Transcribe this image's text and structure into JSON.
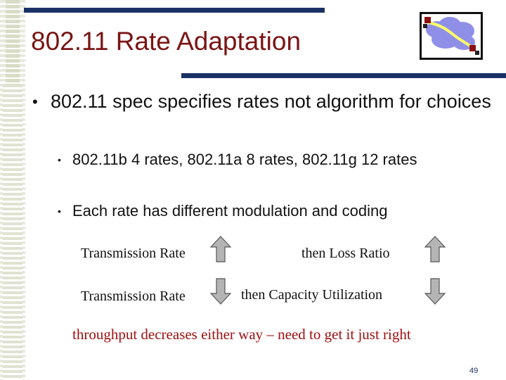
{
  "slide": {
    "title": "802.11 Rate Adaptation",
    "bullets": [
      {
        "text": "802.11 spec specifies rates not algorithm for choices"
      }
    ],
    "sub_bullets": [
      {
        "text": "802.11b 4 rates, 802.11a 8 rates, 802.11g 12 rates"
      },
      {
        "text": "Each rate has different modulation and coding"
      }
    ],
    "bullet_glyph": "•",
    "relations": [
      {
        "left": "Transmission Rate",
        "left_arrow": "up",
        "right": "then Loss Ratio",
        "right_arrow": "up"
      },
      {
        "left": "Transmission Rate",
        "left_arrow": "down",
        "right": "then Capacity Utilization",
        "right_arrow": "down"
      }
    ],
    "conclusion": "throughput decreases either way – need to get it just right",
    "page_number": "49"
  },
  "colors": {
    "title": "#7a1414",
    "bars": "#1a3166",
    "conclusion": "#a01010",
    "arrow_fill": "#b4b4b4",
    "logo_cloud": "#8f8fe8",
    "logo_link": "#ffff66"
  },
  "icons": {
    "logo": "network-cloud-logo",
    "up_arrow": "up-arrow-icon",
    "down_arrow": "down-arrow-icon"
  }
}
